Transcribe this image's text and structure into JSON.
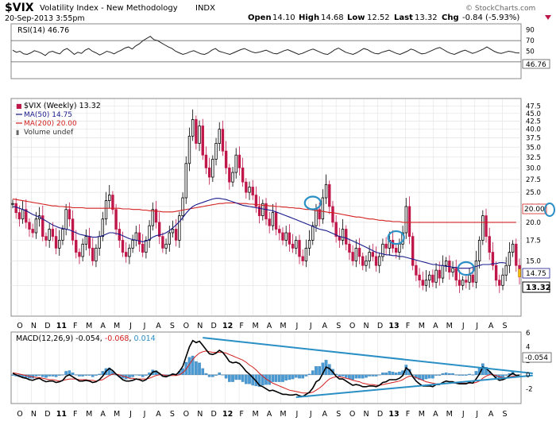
{
  "header": {
    "symbol": "$VIX",
    "name": "Volatility Index - New Methodology",
    "exchange": "INDX",
    "date": "20-Sep-2013 3:55pm",
    "open_label": "Open",
    "open": "14.10",
    "high_label": "High",
    "high": "14.68",
    "low_label": "Low",
    "low": "12.52",
    "last_label": "Last",
    "last": "13.32",
    "chg_label": "Chg",
    "chg": "-0.84 (-5.93%)",
    "watermark": "© StockCharts.com"
  },
  "colors": {
    "up": "#000000",
    "down": "#c0174a",
    "ma50": "#1a1a8c",
    "ma200": "#d42020",
    "macd": "#000000",
    "signal": "#d42020",
    "hist": "#4a9ad4",
    "trend": "#2a8fc4"
  },
  "chart_data": [
    {
      "type": "line",
      "title": "RSI(14) 46.76",
      "series": [
        {
          "name": "RSI(14)",
          "value_label": "46.76"
        }
      ],
      "ylim": [
        0,
        100
      ],
      "yticks": [
        30,
        50,
        70,
        90
      ],
      "reference_lines": [
        30,
        70
      ],
      "last_label": "46.76",
      "values": [
        52,
        48,
        50,
        45,
        44,
        47,
        51,
        49,
        46,
        42,
        48,
        50,
        47,
        45,
        52,
        55,
        50,
        44,
        48,
        46,
        52,
        55,
        50,
        47,
        43,
        46,
        50,
        48,
        45,
        49,
        52,
        56,
        58,
        54,
        60,
        64,
        70,
        74,
        78,
        72,
        70,
        66,
        62,
        58,
        55,
        50,
        47,
        44,
        46,
        49,
        51,
        48,
        45,
        44,
        47,
        52,
        55,
        50,
        48,
        46,
        44,
        47,
        50,
        53,
        55,
        52,
        49,
        47,
        48,
        50,
        52,
        49,
        46,
        45,
        48,
        51,
        53,
        50,
        47,
        44,
        46,
        49,
        52,
        54,
        51,
        48,
        45,
        44,
        48,
        53,
        56,
        52,
        48,
        46,
        44,
        47,
        51,
        55,
        53,
        49,
        46,
        45,
        48,
        50,
        52,
        49,
        46,
        44,
        47,
        50,
        54,
        52,
        48,
        45,
        46,
        49,
        52,
        55,
        57,
        53,
        49,
        46,
        44,
        47,
        50,
        52,
        49,
        46,
        48,
        51,
        54,
        58,
        54,
        50,
        47,
        46,
        48,
        50,
        49,
        47,
        46.76
      ]
    },
    {
      "type": "candlestick",
      "title": "$VIX (Weekly) 13.32",
      "legend": [
        {
          "name": "$VIX (Weekly) 13.32",
          "marker": "■"
        },
        {
          "name": "MA(50) 14.75"
        },
        {
          "name": "MA(200) 20.00"
        },
        {
          "name": "Volume undef",
          "marker": "▮"
        }
      ],
      "ylim": [
        10,
        50
      ],
      "scale": "log",
      "yticks": [
        12.5,
        15.0,
        17.5,
        20.0,
        22.5,
        25.0,
        27.5,
        30.0,
        32.5,
        35.0,
        37.5,
        40.0,
        42.5,
        45.0,
        47.5
      ],
      "ytick_labels": [
        "12.5",
        "15.0",
        "17.5",
        "20.0",
        "22.5",
        "25.0",
        "27.5",
        "30.0",
        "32.5",
        "35.0",
        "37.5",
        "40.0",
        "42.5",
        "45.0",
        "47.5"
      ],
      "last_labels": {
        "ma200": "20.00",
        "ma50": "14.75",
        "close": "13.32"
      },
      "close": [
        23.0,
        21.5,
        20.5,
        22.0,
        20.0,
        19.0,
        18.5,
        20.5,
        21.0,
        18.0,
        17.5,
        19.0,
        18.0,
        16.5,
        17.5,
        19.0,
        22.0,
        20.5,
        17.5,
        16.0,
        15.5,
        17.0,
        18.0,
        16.5,
        15.0,
        16.5,
        18.0,
        20.5,
        23.5,
        24.5,
        22.0,
        19.0,
        17.5,
        16.0,
        15.5,
        16.5,
        17.5,
        18.5,
        17.0,
        16.0,
        17.5,
        19.5,
        22.0,
        20.0,
        18.0,
        16.5,
        17.0,
        18.5,
        19.0,
        17.5,
        21.0,
        24.0,
        31.0,
        38.0,
        43.0,
        36.0,
        41.0,
        33.0,
        30.0,
        28.0,
        32.0,
        36.0,
        40.0,
        34.0,
        30.0,
        27.0,
        29.0,
        33.0,
        30.0,
        27.0,
        25.0,
        26.0,
        24.5,
        22.5,
        21.0,
        23.0,
        20.5,
        19.5,
        21.5,
        19.0,
        18.5,
        17.5,
        18.5,
        17.0,
        16.5,
        17.5,
        15.5,
        15.0,
        16.5,
        17.5,
        19.5,
        22.0,
        20.5,
        24.0,
        26.5,
        22.5,
        20.0,
        18.0,
        17.5,
        19.0,
        17.0,
        16.0,
        15.0,
        16.5,
        15.5,
        14.5,
        15.0,
        16.0,
        15.5,
        14.5,
        15.5,
        17.0,
        16.5,
        17.5,
        16.5,
        16.0,
        17.0,
        18.5,
        22.5,
        18.0,
        14.5,
        13.5,
        13.0,
        12.5,
        13.0,
        13.5,
        12.8,
        14.0,
        13.2,
        14.5,
        15.0,
        13.8,
        14.2,
        13.0,
        12.5,
        13.0,
        12.8,
        13.5,
        12.8,
        15.0,
        17.5,
        21.0,
        18.0,
        16.0,
        14.5,
        13.0,
        12.5,
        13.5,
        14.5,
        16.0,
        17.0,
        14.5,
        13.32
      ],
      "ma50": [
        22.5,
        22.4,
        22.2,
        22.0,
        21.8,
        21.5,
        21.2,
        21.0,
        20.8,
        20.5,
        20.2,
        19.9,
        19.6,
        19.4,
        19.2,
        19.1,
        19.0,
        18.9,
        18.7,
        18.5,
        18.3,
        18.2,
        18.1,
        18.0,
        17.9,
        17.9,
        18.0,
        18.1,
        18.3,
        18.5,
        18.5,
        18.4,
        18.3,
        18.1,
        17.9,
        17.7,
        17.6,
        17.5,
        17.4,
        17.3,
        17.4,
        17.6,
        17.9,
        18.1,
        18.2,
        18.3,
        18.5,
        18.8,
        19.2,
        19.6,
        20.1,
        20.7,
        21.4,
        22.0,
        22.5,
        22.8,
        23.0,
        23.2,
        23.4,
        23.6,
        23.8,
        23.9,
        23.9,
        23.8,
        23.7,
        23.5,
        23.3,
        23.1,
        22.9,
        22.7,
        22.6,
        22.5,
        22.4,
        22.3,
        22.2,
        22.1,
        22.0,
        21.9,
        21.8,
        21.6,
        21.4,
        21.2,
        21.0,
        20.8,
        20.6,
        20.4,
        20.2,
        20.0,
        19.8,
        19.6,
        19.4,
        19.2,
        19.0,
        18.9,
        18.8,
        18.6,
        18.4,
        18.2,
        18.0,
        17.9,
        17.8,
        17.6,
        17.4,
        17.2,
        17.0,
        16.8,
        16.6,
        16.4,
        16.2,
        16.0,
        15.9,
        15.8,
        15.7,
        15.7,
        15.6,
        15.6,
        15.5,
        15.5,
        15.4,
        15.3,
        15.2,
        15.1,
        15.0,
        14.9,
        14.8,
        14.7,
        14.6,
        14.6,
        14.5,
        14.5,
        14.4,
        14.4,
        14.3,
        14.3,
        14.2,
        14.2,
        14.2,
        14.2,
        14.3,
        14.4,
        14.5,
        14.6,
        14.6,
        14.6,
        14.7,
        14.7,
        14.8,
        14.8,
        14.75
      ],
      "ma200": [
        23.8,
        23.7,
        23.6,
        23.5,
        23.4,
        23.3,
        23.2,
        23.1,
        23.0,
        22.9,
        22.8,
        22.7,
        22.6,
        22.6,
        22.5,
        22.5,
        22.4,
        22.4,
        22.3,
        22.3,
        22.3,
        22.3,
        22.2,
        22.2,
        22.2,
        22.2,
        22.2,
        22.2,
        22.2,
        22.2,
        22.2,
        22.2,
        22.2,
        22.1,
        22.1,
        22.1,
        22.0,
        22.0,
        22.0,
        21.9,
        21.9,
        21.8,
        21.8,
        21.7,
        21.7,
        21.6,
        21.6,
        21.6,
        21.6,
        21.7,
        21.8,
        21.9,
        22.0,
        22.1,
        22.2,
        22.3,
        22.4,
        22.5,
        22.6,
        22.7,
        22.8,
        22.9,
        23.0,
        23.0,
        23.1,
        23.1,
        23.1,
        23.1,
        23.0,
        23.0,
        23.0,
        22.9,
        22.9,
        22.8,
        22.8,
        22.7,
        22.7,
        22.6,
        22.6,
        22.5,
        22.5,
        22.4,
        22.4,
        22.3,
        22.3,
        22.2,
        22.2,
        22.1,
        22.0,
        22.0,
        21.9,
        21.8,
        21.8,
        21.7,
        21.6,
        21.5,
        21.5,
        21.4,
        21.3,
        21.2,
        21.1,
        21.0,
        20.9,
        20.8,
        20.8,
        20.7,
        20.6,
        20.5,
        20.5,
        20.4,
        20.3,
        20.3,
        20.2,
        20.2,
        20.1,
        20.1,
        20.1,
        20.0,
        20.0,
        20.0,
        20.0,
        20.0,
        20.0,
        20.0,
        20.0,
        20.0,
        20.0,
        20.0,
        20.0,
        20.0,
        20.0,
        20.0,
        20.0,
        20.0,
        20.0,
        20.0,
        20.0,
        20.0,
        20.0,
        20.0,
        20.0,
        20.0,
        20.0,
        20.0,
        20.0,
        20.0,
        20.0,
        20.0,
        20.0,
        20.0,
        20.0,
        20.0
      ],
      "circled_peaks_index": [
        90,
        115,
        136
      ],
      "circle_note_at_last": "ma200"
    },
    {
      "type": "line",
      "title": "MACD(12,26,9) -0.054, -0.068, 0.014",
      "legend_parts": [
        "MACD(12,26,9) -0.054, ",
        "-0.068",
        ", ",
        "0.014"
      ],
      "ylim": [
        -4,
        6
      ],
      "yticks": [
        -2,
        0,
        2,
        4,
        6
      ],
      "last_label": "-0.054",
      "macd": [
        0.2,
        0.0,
        -0.2,
        -0.4,
        -0.5,
        -0.7,
        -0.8,
        -0.6,
        -0.5,
        -0.8,
        -1.0,
        -0.9,
        -0.9,
        -1.1,
        -1.0,
        -0.8,
        -0.2,
        0.0,
        -0.3,
        -0.6,
        -0.9,
        -0.9,
        -0.8,
        -0.9,
        -1.1,
        -1.0,
        -0.7,
        -0.2,
        0.5,
        0.9,
        0.6,
        0.1,
        -0.3,
        -0.7,
        -0.9,
        -0.9,
        -0.8,
        -0.6,
        -0.7,
        -0.9,
        -0.7,
        -0.2,
        0.4,
        0.5,
        0.2,
        -0.2,
        -0.3,
        -0.1,
        0.1,
        0.0,
        0.5,
        1.2,
        2.6,
        4.0,
        4.9,
        4.6,
        4.8,
        4.2,
        3.6,
        3.0,
        2.9,
        3.1,
        3.5,
        3.2,
        2.6,
        1.9,
        1.7,
        1.8,
        1.6,
        1.1,
        0.5,
        0.1,
        -0.4,
        -0.9,
        -1.5,
        -1.7,
        -2.0,
        -2.3,
        -2.2,
        -2.4,
        -2.6,
        -2.8,
        -2.8,
        -2.9,
        -2.9,
        -2.8,
        -3.0,
        -3.1,
        -2.8,
        -2.5,
        -1.9,
        -1.0,
        -0.7,
        0.2,
        1.1,
        0.9,
        0.4,
        -0.2,
        -0.6,
        -0.6,
        -0.9,
        -1.2,
        -1.5,
        -1.4,
        -1.5,
        -1.7,
        -1.7,
        -1.6,
        -1.6,
        -1.7,
        -1.5,
        -1.1,
        -1.0,
        -0.7,
        -0.7,
        -0.7,
        -0.5,
        -0.1,
        1.0,
        0.6,
        -0.3,
        -0.9,
        -1.3,
        -1.6,
        -1.6,
        -1.6,
        -1.7,
        -1.4,
        -1.4,
        -1.1,
        -0.9,
        -1.0,
        -1.0,
        -1.2,
        -1.3,
        -1.3,
        -1.3,
        -1.1,
        -1.2,
        -0.6,
        0.1,
        1.1,
        0.9,
        0.5,
        0.0,
        -0.5,
        -0.8,
        -0.7,
        -0.5,
        -0.1,
        0.2,
        -0.1,
        -0.054
      ],
      "signal": [
        0.3,
        0.2,
        0.1,
        0.0,
        -0.1,
        -0.2,
        -0.3,
        -0.4,
        -0.4,
        -0.5,
        -0.6,
        -0.7,
        -0.7,
        -0.8,
        -0.9,
        -0.8,
        -0.7,
        -0.6,
        -0.6,
        -0.6,
        -0.7,
        -0.7,
        -0.7,
        -0.8,
        -0.8,
        -0.9,
        -0.8,
        -0.7,
        -0.4,
        -0.1,
        0.1,
        0.1,
        0.0,
        -0.2,
        -0.3,
        -0.5,
        -0.5,
        -0.6,
        -0.6,
        -0.6,
        -0.6,
        -0.5,
        -0.3,
        -0.1,
        0.0,
        0.0,
        -0.1,
        -0.1,
        -0.1,
        -0.1,
        0.0,
        0.3,
        0.8,
        1.5,
        2.2,
        2.7,
        3.1,
        3.3,
        3.4,
        3.3,
        3.2,
        3.2,
        3.2,
        3.2,
        3.1,
        2.9,
        2.7,
        2.5,
        2.3,
        2.1,
        1.8,
        1.4,
        1.1,
        0.7,
        0.2,
        -0.2,
        -0.6,
        -0.9,
        -1.2,
        -1.4,
        -1.6,
        -1.8,
        -2.0,
        -2.2,
        -2.3,
        -2.4,
        -2.5,
        -2.6,
        -2.6,
        -2.6,
        -2.5,
        -2.2,
        -1.9,
        -1.5,
        -1.0,
        -0.6,
        -0.4,
        -0.3,
        -0.3,
        -0.4,
        -0.5,
        -0.6,
        -0.8,
        -0.9,
        -1.0,
        -1.2,
        -1.3,
        -1.4,
        -1.4,
        -1.5,
        -1.5,
        -1.4,
        -1.3,
        -1.2,
        -1.1,
        -1.0,
        -0.9,
        -0.7,
        -0.4,
        -0.2,
        -0.2,
        -0.4,
        -0.6,
        -0.8,
        -1.0,
        -1.1,
        -1.2,
        -1.3,
        -1.3,
        -1.3,
        -1.2,
        -1.2,
        -1.2,
        -1.2,
        -1.2,
        -1.2,
        -1.2,
        -1.2,
        -1.2,
        -1.1,
        -0.9,
        -0.5,
        -0.2,
        0.0,
        0.0,
        -0.1,
        -0.3,
        -0.4,
        -0.4,
        -0.3,
        -0.2,
        -0.1,
        -0.068
      ],
      "trendlines": [
        {
          "from_index": 57,
          "from_value": 5.3,
          "to_index": 156,
          "to_value": 0.2
        },
        {
          "from_index": 85,
          "from_value": -3.2,
          "to_index": 156,
          "to_value": -0.1
        }
      ]
    }
  ],
  "x_axis": {
    "labels": [
      "O",
      "N",
      "D",
      "11",
      "F",
      "M",
      "A",
      "M",
      "J",
      "J",
      "A",
      "S",
      "O",
      "N",
      "D",
      "12",
      "F",
      "M",
      "A",
      "M",
      "J",
      "J",
      "A",
      "S",
      "O",
      "N",
      "D",
      "13",
      "F",
      "M",
      "A",
      "M",
      "J",
      "J",
      "A",
      "S"
    ],
    "year_labels": [
      "11",
      "12",
      "13"
    ],
    "first_month_index": 0,
    "months_total": 36
  }
}
